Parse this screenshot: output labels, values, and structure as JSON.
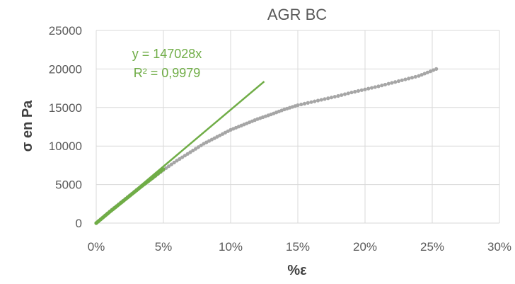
{
  "chart_data": {
    "type": "scatter",
    "title": "AGR BC",
    "xlabel": "%ε",
    "ylabel": "σ en Pa",
    "xlim": [
      0,
      0.3
    ],
    "ylim": [
      0,
      25000
    ],
    "x_ticks": [
      0,
      0.05,
      0.1,
      0.15,
      0.2,
      0.25,
      0.3
    ],
    "x_tick_labels": [
      "0%",
      "5%",
      "10%",
      "15%",
      "20%",
      "25%",
      "30%"
    ],
    "y_ticks": [
      0,
      5000,
      10000,
      15000,
      20000,
      25000
    ],
    "y_tick_labels": [
      "0",
      "5000",
      "10000",
      "15000",
      "20000",
      "25000"
    ],
    "grid": true,
    "series": [
      {
        "color": "#A6A6A6",
        "points": [
          [
            0.0,
            0
          ],
          [
            0.005,
            750
          ],
          [
            0.01,
            1500
          ],
          [
            0.02,
            2900
          ],
          [
            0.03,
            4300
          ],
          [
            0.04,
            5600
          ],
          [
            0.05,
            6900
          ],
          [
            0.06,
            8100
          ],
          [
            0.07,
            9200
          ],
          [
            0.08,
            10300
          ],
          [
            0.09,
            11200
          ],
          [
            0.1,
            12100
          ],
          [
            0.11,
            12800
          ],
          [
            0.12,
            13500
          ],
          [
            0.13,
            14100
          ],
          [
            0.14,
            14750
          ],
          [
            0.15,
            15300
          ],
          [
            0.16,
            15700
          ],
          [
            0.17,
            16100
          ],
          [
            0.18,
            16500
          ],
          [
            0.19,
            16950
          ],
          [
            0.2,
            17350
          ],
          [
            0.21,
            17750
          ],
          [
            0.22,
            18200
          ],
          [
            0.23,
            18650
          ],
          [
            0.24,
            19100
          ],
          [
            0.253,
            20000
          ]
        ]
      },
      {
        "color": "#70AD47",
        "points": [
          [
            0.0,
            0
          ],
          [
            0.005,
            720
          ],
          [
            0.01,
            1450
          ],
          [
            0.015,
            2150
          ],
          [
            0.02,
            2850
          ],
          [
            0.025,
            3550
          ],
          [
            0.03,
            4250
          ],
          [
            0.035,
            4950
          ],
          [
            0.04,
            5600
          ],
          [
            0.045,
            6300
          ],
          [
            0.05,
            7000
          ]
        ]
      }
    ],
    "trendline": {
      "slope": 147028,
      "x_range": [
        0,
        0.125
      ],
      "color": "#70AD47",
      "equation": "y = 147028x",
      "r2": "R² = 0,9979"
    }
  }
}
